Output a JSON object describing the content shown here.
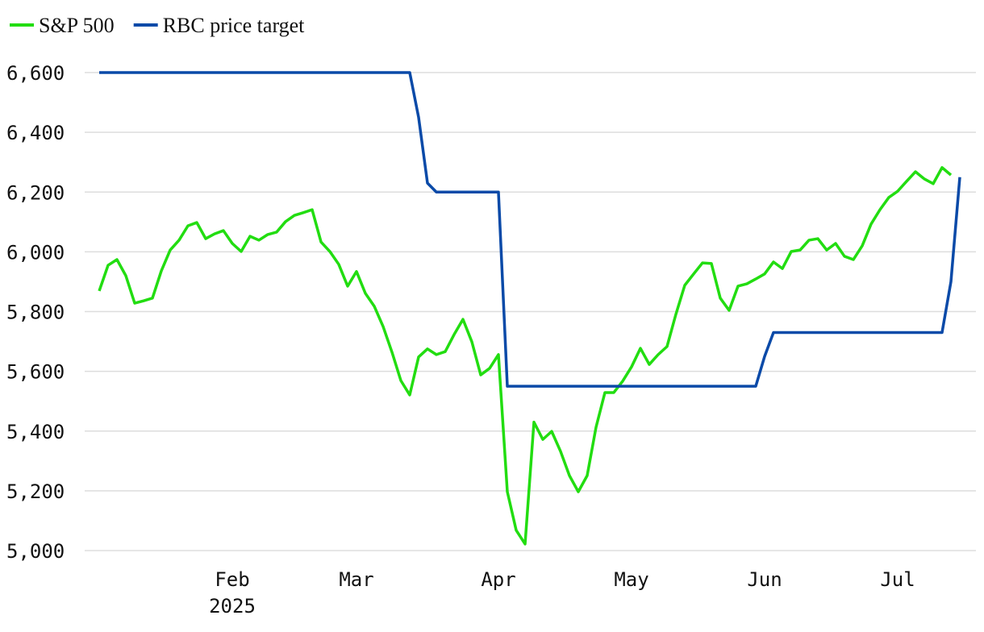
{
  "chart_data": {
    "type": "line",
    "categories": [
      null,
      null,
      null,
      null,
      null,
      null,
      null,
      null,
      null,
      null,
      null,
      null,
      null,
      null,
      null,
      "Feb",
      null,
      null,
      null,
      null,
      null,
      null,
      null,
      null,
      null,
      null,
      null,
      null,
      null,
      "Mar",
      null,
      null,
      null,
      null,
      null,
      null,
      null,
      null,
      null,
      null,
      null,
      null,
      null,
      null,
      null,
      "Apr",
      null,
      null,
      null,
      null,
      null,
      null,
      null,
      null,
      null,
      null,
      null,
      null,
      null,
      null,
      "May",
      null,
      null,
      null,
      null,
      null,
      null,
      null,
      null,
      null,
      null,
      null,
      null,
      null,
      null,
      "Jun",
      null,
      null,
      null,
      null,
      null,
      null,
      null,
      null,
      null,
      null,
      null,
      null,
      null,
      null,
      "Jul",
      null,
      null,
      null,
      null,
      null,
      null,
      null
    ],
    "year_label": "2025",
    "series": [
      {
        "name": "S&P 500",
        "color": "#22dd11",
        "values": [
          5869,
          5955,
          5974,
          5920,
          5828,
          5836,
          5845,
          5936,
          6006,
          6039,
          6087,
          6098,
          6044,
          6060,
          6071,
          6028,
          6001,
          6052,
          6039,
          6058,
          6066,
          6101,
          6122,
          6131,
          6141,
          6033,
          6001,
          5958,
          5885,
          5934,
          5861,
          5818,
          5750,
          5664,
          5569,
          5521,
          5648,
          5675,
          5656,
          5666,
          5723,
          5774,
          5699,
          5588,
          5610,
          5656,
          5197,
          5068,
          5022,
          5430,
          5372,
          5399,
          5332,
          5251,
          5197,
          5251,
          5413,
          5529,
          5529,
          5567,
          5615,
          5677,
          5623,
          5656,
          5683,
          5791,
          5888,
          5926,
          5963,
          5961,
          5845,
          5804,
          5885,
          5893,
          5909,
          5926,
          5966,
          5944,
          6001,
          6006,
          6039,
          6044,
          6006,
          6028,
          5985,
          5974,
          6020,
          6093,
          6141,
          6182,
          6203,
          6236,
          6268,
          6244,
          6228,
          6282,
          6257,
          null
        ]
      },
      {
        "name": "RBC price target",
        "color": "#0a4aa8",
        "values": [
          6600,
          6600,
          6600,
          6600,
          6600,
          6600,
          6600,
          6600,
          6600,
          6600,
          6600,
          6600,
          6600,
          6600,
          6600,
          6600,
          6600,
          6600,
          6600,
          6600,
          6600,
          6600,
          6600,
          6600,
          6600,
          6600,
          6600,
          6600,
          6600,
          6600,
          6600,
          6600,
          6600,
          6600,
          6600,
          6600,
          6450,
          6230,
          6200,
          6200,
          6200,
          6200,
          6200,
          6200,
          6200,
          6200,
          5550,
          5550,
          5550,
          5550,
          5550,
          5550,
          5550,
          5550,
          5550,
          5550,
          5550,
          5550,
          5550,
          5550,
          5550,
          5550,
          5550,
          5550,
          5550,
          5550,
          5550,
          5550,
          5550,
          5550,
          5550,
          5550,
          5550,
          5550,
          5550,
          5650,
          5730,
          5730,
          5730,
          5730,
          5730,
          5730,
          5730,
          5730,
          5730,
          5730,
          5730,
          5730,
          5730,
          5730,
          5730,
          5730,
          5730,
          5730,
          5730,
          5730,
          5900,
          6250
        ]
      }
    ],
    "ylim": [
      5000,
      6600
    ],
    "yticks": [
      {
        "value": 5000,
        "label": "5,000"
      },
      {
        "value": 5200,
        "label": "5,200"
      },
      {
        "value": 5400,
        "label": "5,400"
      },
      {
        "value": 5600,
        "label": "5,600"
      },
      {
        "value": 5800,
        "label": "5,800"
      },
      {
        "value": 6000,
        "label": "6,000"
      },
      {
        "value": 6200,
        "label": "6,200"
      },
      {
        "value": 6400,
        "label": "6,400"
      },
      {
        "value": 6600,
        "label": "6,600"
      }
    ],
    "grid": true,
    "legend": "top-left"
  }
}
